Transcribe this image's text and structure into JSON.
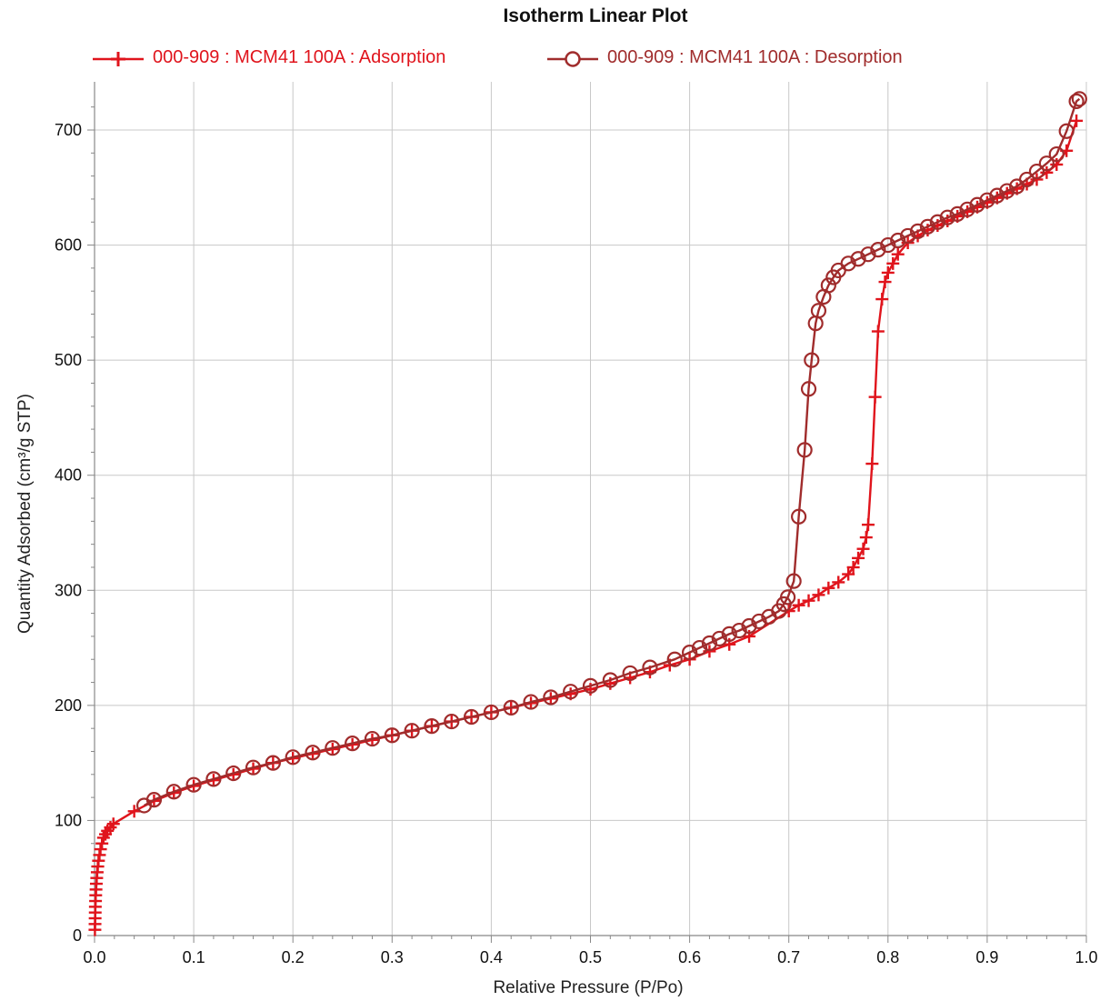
{
  "chart_data": {
    "type": "line",
    "title": "Isotherm Linear Plot",
    "xlabel": "Relative Pressure (P/Po)",
    "ylabel": "Quantity Adsorbed (cm³/g STP)",
    "xlim": [
      0.0,
      1.0
    ],
    "ylim": [
      0,
      740
    ],
    "x_ticks": [
      "0.0",
      "0.1",
      "0.2",
      "0.3",
      "0.4",
      "0.5",
      "0.6",
      "0.7",
      "0.8",
      "0.9",
      "1.0"
    ],
    "y_ticks": [
      "0",
      "100",
      "200",
      "300",
      "400",
      "500",
      "600",
      "700"
    ],
    "grid": true,
    "legend_position": "top",
    "series": [
      {
        "name": "000-909 : MCM41 100A : Adsorption",
        "color": "#e0141c",
        "marker": "plus",
        "x": [
          0.0004,
          0.0005,
          0.0006,
          0.0007,
          0.0008,
          0.001,
          0.0012,
          0.0015,
          0.0018,
          0.0022,
          0.0027,
          0.0033,
          0.004,
          0.005,
          0.006,
          0.0075,
          0.009,
          0.011,
          0.013,
          0.016,
          0.019,
          0.04,
          0.06,
          0.08,
          0.1,
          0.12,
          0.14,
          0.16,
          0.18,
          0.2,
          0.22,
          0.24,
          0.26,
          0.28,
          0.3,
          0.32,
          0.34,
          0.36,
          0.38,
          0.4,
          0.42,
          0.44,
          0.46,
          0.48,
          0.5,
          0.52,
          0.54,
          0.56,
          0.58,
          0.6,
          0.62,
          0.64,
          0.66,
          0.7,
          0.71,
          0.72,
          0.73,
          0.74,
          0.75,
          0.76,
          0.765,
          0.77,
          0.775,
          0.778,
          0.78,
          0.784,
          0.787,
          0.79,
          0.794,
          0.797,
          0.8,
          0.805,
          0.81,
          0.82,
          0.83,
          0.84,
          0.85,
          0.86,
          0.87,
          0.88,
          0.89,
          0.9,
          0.91,
          0.92,
          0.93,
          0.94,
          0.95,
          0.96,
          0.97,
          0.98,
          0.99
        ],
        "y": [
          5,
          10,
          15,
          20,
          25,
          30,
          35,
          40,
          45,
          50,
          55,
          60,
          65,
          70,
          75,
          80,
          85,
          88,
          91,
          94,
          97,
          108,
          117,
          124,
          130,
          135,
          140,
          145,
          150,
          154,
          158,
          162,
          166,
          170,
          174,
          178,
          182,
          186,
          190,
          194,
          198,
          202,
          206,
          210,
          214,
          219,
          224,
          229,
          235,
          240,
          247,
          253,
          260,
          282,
          287,
          291,
          296,
          302,
          307,
          314,
          320,
          328,
          336,
          346,
          357,
          410,
          468,
          525,
          553,
          568,
          576,
          584,
          592,
          602,
          608,
          613,
          617,
          621,
          625,
          629,
          633,
          637,
          641,
          645,
          649,
          653,
          657,
          663,
          670,
          682,
          708
        ]
      },
      {
        "name": "000-909 : MCM41 100A : Desorption",
        "color": "#a02c2c",
        "marker": "circle",
        "x": [
          0.993,
          0.99,
          0.98,
          0.97,
          0.96,
          0.95,
          0.94,
          0.93,
          0.92,
          0.91,
          0.9,
          0.89,
          0.88,
          0.87,
          0.86,
          0.85,
          0.84,
          0.83,
          0.82,
          0.81,
          0.8,
          0.79,
          0.78,
          0.77,
          0.76,
          0.75,
          0.745,
          0.74,
          0.735,
          0.73,
          0.727,
          0.723,
          0.72,
          0.716,
          0.71,
          0.705,
          0.699,
          0.695,
          0.69,
          0.68,
          0.67,
          0.66,
          0.65,
          0.64,
          0.63,
          0.62,
          0.61,
          0.6,
          0.585,
          0.56,
          0.54,
          0.52,
          0.5,
          0.48,
          0.46,
          0.44,
          0.42,
          0.4,
          0.38,
          0.36,
          0.34,
          0.32,
          0.3,
          0.28,
          0.26,
          0.24,
          0.22,
          0.2,
          0.18,
          0.16,
          0.14,
          0.12,
          0.1,
          0.08,
          0.06,
          0.05
        ],
        "y": [
          727,
          725,
          699,
          679,
          671,
          664,
          657,
          651,
          647,
          643,
          639,
          635,
          631,
          627,
          624,
          620,
          616,
          612,
          608,
          604,
          600,
          596,
          592,
          588,
          584,
          578,
          572,
          565,
          555,
          543,
          532,
          500,
          475,
          422,
          364,
          308,
          294,
          288,
          282,
          277,
          273,
          269,
          265,
          262,
          258,
          254,
          250,
          246,
          240,
          233,
          228,
          222,
          217,
          212,
          207,
          203,
          198,
          194,
          190,
          186,
          182,
          178,
          174,
          171,
          167,
          163,
          159,
          155,
          150,
          146,
          141,
          136,
          131,
          125,
          118,
          113
        ]
      }
    ]
  }
}
